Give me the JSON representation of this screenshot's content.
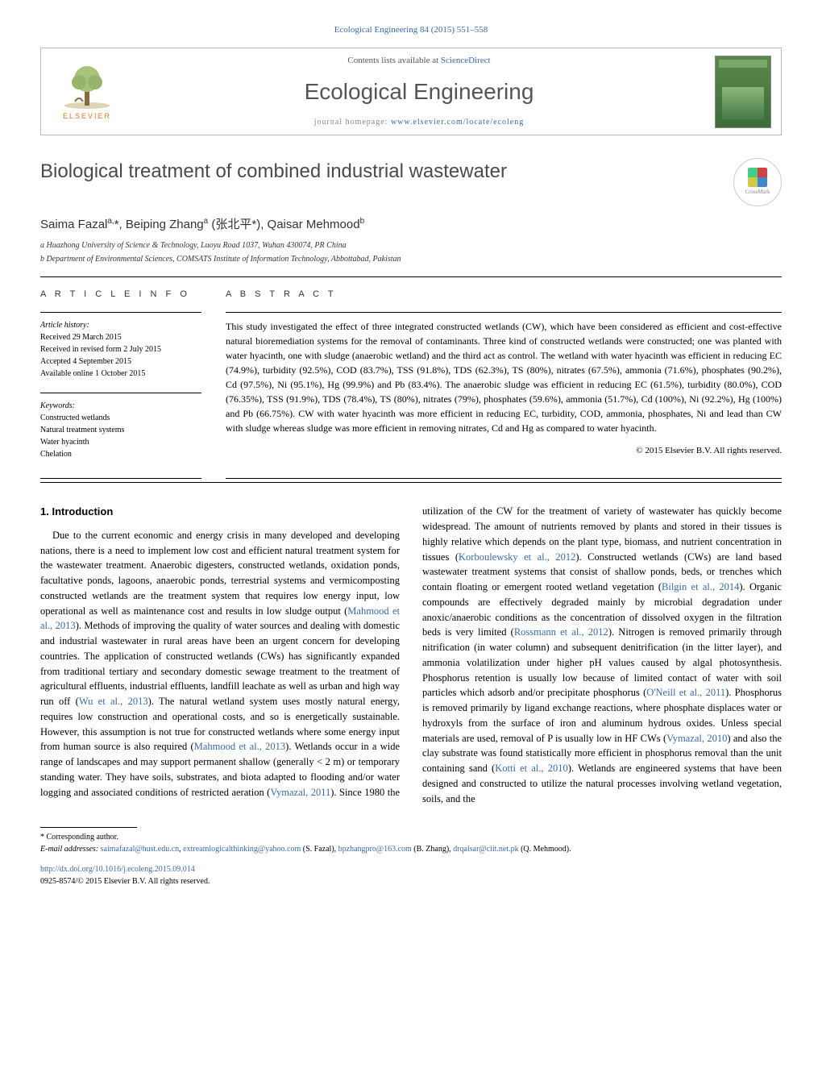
{
  "header": {
    "citation": "Ecological Engineering 84 (2015) 551–558",
    "contents_prefix": "Contents lists available at ",
    "contents_link": "ScienceDirect",
    "journal_name": "Ecological Engineering",
    "homepage_prefix": "journal homepage: ",
    "homepage_url": "www.elsevier.com/locate/ecoleng",
    "publisher_name": "ELSEVIER",
    "crossmark_label": "CrossMark"
  },
  "article": {
    "title": "Biological treatment of combined industrial wastewater",
    "authors_html": "Saima Fazal<sup>a,</sup>*, Beiping Zhang<sup>a</sup> (张北平*), Qaisar Mehmood<sup>b</sup>",
    "affiliations": [
      "a Huazhong University of Science & Technology, Luoyu Road 1037, Wuhan 430074, PR China",
      "b Department of Environmental Sciences, COMSATS Institute of Information Technology, Abbottabad, Pakistan"
    ]
  },
  "info": {
    "heading": "a r t i c l e   i n f o",
    "history_label": "Article history:",
    "history": [
      "Received 29 March 2015",
      "Received in revised form 2 July 2015",
      "Accepted 4 September 2015",
      "Available online 1 October 2015"
    ],
    "keywords_label": "Keywords:",
    "keywords": [
      "Constructed wetlands",
      "Natural treatment systems",
      "Water hyacinth",
      "Chelation"
    ]
  },
  "abstract": {
    "heading": "a b s t r a c t",
    "text": "This study investigated the effect of three integrated constructed wetlands (CW), which have been considered as efficient and cost-effective natural bioremediation systems for the removal of contaminants. Three kind of constructed wetlands were constructed; one was planted with water hyacinth, one with sludge (anaerobic wetland) and the third act as control. The wetland with water hyacinth was efficient in reducing EC (74.9%), turbidity (92.5%), COD (83.7%), TSS (91.8%), TDS (62.3%), TS (80%), nitrates (67.5%), ammonia (71.6%), phosphates (90.2%), Cd (97.5%), Ni (95.1%), Hg (99.9%) and Pb (83.4%). The anaerobic sludge was efficient in reducing EC (61.5%), turbidity (80.0%), COD (76.35%), TSS (91.9%), TDS (78.4%), TS (80%), nitrates (79%), phosphates (59.6%), ammonia (51.7%), Cd (100%), Ni (92.2%), Hg (100%) and Pb (66.75%). CW with water hyacinth was more efficient in reducing EC, turbidity, COD, ammonia, phosphates, Ni and lead than CW with sludge whereas sludge was more efficient in removing nitrates, Cd and Hg as compared to water hyacinth.",
    "copyright": "© 2015 Elsevier B.V. All rights reserved."
  },
  "body": {
    "section_number": "1.",
    "section_title": "Introduction",
    "para1_a": "Due to the current economic and energy crisis in many developed and developing nations, there is a need to implement low cost and efficient natural treatment system for the wastewater treatment. Anaerobic digesters, constructed wetlands, oxidation ponds, facultative ponds, lagoons, anaerobic ponds, terrestrial systems and vermicomposting constructed wetlands are the treatment system that requires low energy input, low operational as well as maintenance cost and results in low sludge output (",
    "ref1": "Mahmood et al., 2013",
    "para1_b": "). Methods of improving the quality of water sources and dealing with domestic and industrial wastewater in rural areas have been an urgent concern for developing countries. The application of constructed wetlands (CWs) has significantly expanded from traditional tertiary and secondary domestic sewage treatment to the treatment of agricultural effluents, industrial effluents, landfill leachate as well as urban and high way run off (",
    "ref2": "Wu et al., 2013",
    "para1_c": "). The natural wetland system uses mostly natural energy, requires low construction and operational costs, and so is energetically sustainable. However, this assumption is not true for constructed wetlands where some energy input from human source is also required (",
    "ref3": "Mahmood et al., 2013",
    "para1_d": "). Wetlands occur in a wide range of landscapes and may support permanent shallow ",
    "para1_e": "(generally < 2 m) or temporary standing water. They have soils, substrates, and biota adapted to flooding and/or water logging and associated conditions of restricted aeration (",
    "ref4": "Vymazal, 2011",
    "para1_f": "). Since 1980 the utilization of the CW for the treatment of variety of wastewater has quickly become widespread. The amount of nutrients removed by plants and stored in their tissues is highly relative which depends on the plant type, biomass, and nutrient concentration in tissues (",
    "ref5": "Korboulewsky et al., 2012",
    "para1_g": "). Constructed wetlands (CWs) are land based wastewater treatment systems that consist of shallow ponds, beds, or trenches which contain floating or emergent rooted wetland vegetation (",
    "ref6": "Bilgin et al., 2014",
    "para1_h": "). Organic compounds are effectively degraded mainly by microbial degradation under anoxic/anaerobic conditions as the concentration of dissolved oxygen in the filtration beds is very limited (",
    "ref7": "Rossmann et al., 2012",
    "para1_i": "). Nitrogen is removed primarily through nitrification (in water column) and subsequent denitrification (in the litter layer), and ammonia volatilization under higher pH values caused by algal photosynthesis. Phosphorus retention is usually low because of limited contact of water with soil particles which adsorb and/or precipitate phosphorus (",
    "ref8": "O'Neill et al., 2011",
    "para1_j": "). Phosphorus is removed primarily by ligand exchange reactions, where phosphate displaces water or hydroxyls from the surface of iron and aluminum hydrous oxides. Unless special materials are used, removal of P is usually low in HF CWs (",
    "ref9": "Vymazal, 2010",
    "para1_k": ") and also the clay substrate was found statistically more efficient in phosphorus removal than the unit containing sand (",
    "ref10": "Kotti et al., 2010",
    "para1_l": "). Wetlands are engineered systems that have been designed and constructed to utilize the natural processes involving wetland vegetation, soils, and the"
  },
  "footer": {
    "corresponding": "* Corresponding author.",
    "email_label": "E-mail addresses: ",
    "emails": [
      {
        "addr": "saimafazal@hust.edu.cn",
        "who": ""
      },
      {
        "addr": "extreamlogicalthinking@yahoo.com",
        "who": " (S. Fazal), "
      },
      {
        "addr": "bpzhangpro@163.com",
        "who": " (B. Zhang), "
      },
      {
        "addr": "drqaisar@ciit.net.pk",
        "who": " (Q. Mehmood)."
      }
    ],
    "doi": "http://dx.doi.org/10.1016/j.ecoleng.2015.09.014",
    "issn_line": "0925-8574/© 2015 Elsevier B.V. All rights reserved."
  },
  "colors": {
    "link": "#3a6aa8",
    "publisher": "#e87722",
    "text": "#000000",
    "muted": "#555555"
  }
}
